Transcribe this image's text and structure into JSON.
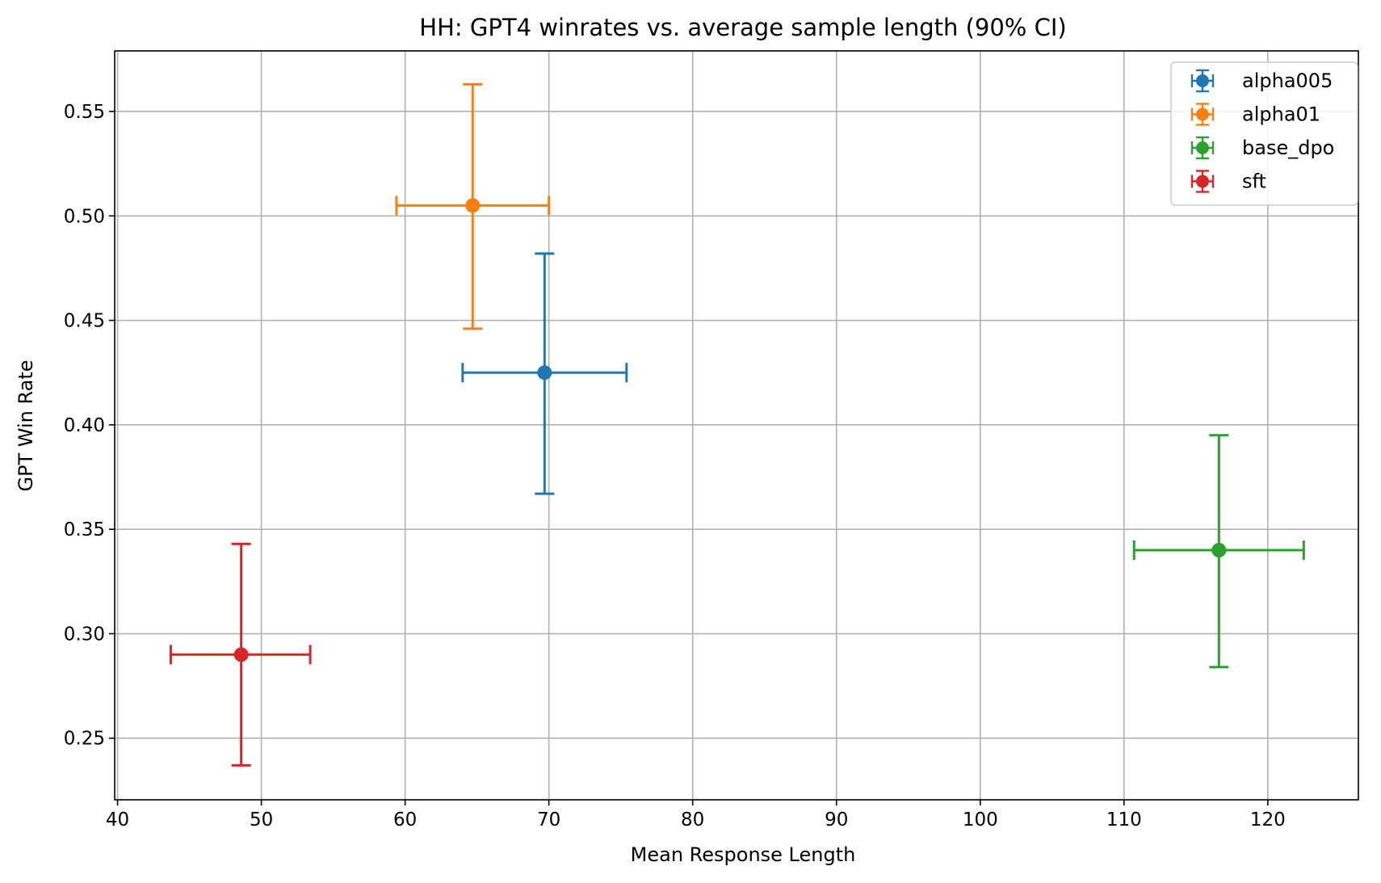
{
  "chart_data": {
    "type": "scatter",
    "title": "HH: GPT4 winrates vs. average sample length (90% CI)",
    "xlabel": "Mean Response Length",
    "ylabel": "GPT Win Rate",
    "xlim": [
      39.8,
      126.3
    ],
    "ylim": [
      0.2205,
      0.579
    ],
    "xticks": [
      40,
      50,
      60,
      70,
      80,
      90,
      100,
      110,
      120
    ],
    "yticks": [
      0.25,
      0.3,
      0.35,
      0.4,
      0.45,
      0.5,
      0.55
    ],
    "xtick_labels": [
      "40",
      "50",
      "60",
      "70",
      "80",
      "90",
      "100",
      "110",
      "120"
    ],
    "ytick_labels": [
      "0.25",
      "0.30",
      "0.35",
      "0.40",
      "0.45",
      "0.50",
      "0.55"
    ],
    "grid": true,
    "legend_position": "top-right",
    "series": [
      {
        "name": "alpha005",
        "color": "#1f77b4",
        "x": 69.7,
        "y": 0.425,
        "xerr": [
          64.0,
          75.4
        ],
        "yerr": [
          0.367,
          0.482
        ]
      },
      {
        "name": "alpha01",
        "color": "#ff7f0e",
        "x": 64.7,
        "y": 0.505,
        "xerr": [
          59.4,
          70.0
        ],
        "yerr": [
          0.446,
          0.563
        ]
      },
      {
        "name": "base_dpo",
        "color": "#2ca02c",
        "x": 116.6,
        "y": 0.34,
        "xerr": [
          110.7,
          122.5
        ],
        "yerr": [
          0.284,
          0.395
        ]
      },
      {
        "name": "sft",
        "color": "#d62728",
        "x": 48.6,
        "y": 0.29,
        "xerr": [
          43.7,
          53.4
        ],
        "yerr": [
          0.237,
          0.343
        ]
      }
    ]
  }
}
